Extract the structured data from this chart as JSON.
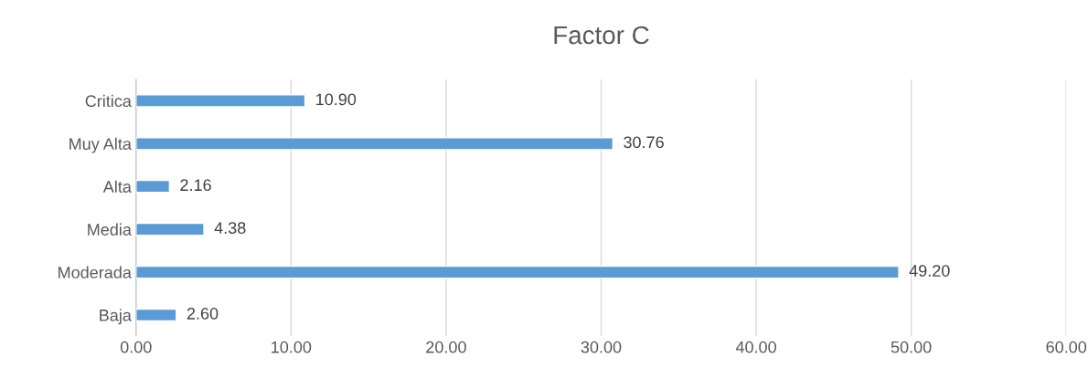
{
  "chart_data": {
    "type": "bar",
    "title": "Factor C",
    "orientation": "horizontal",
    "categories": [
      "Critica",
      "Muy Alta",
      "Alta",
      "Media",
      "Moderada",
      "Baja"
    ],
    "values": [
      10.9,
      30.76,
      2.16,
      4.38,
      49.2,
      2.6
    ],
    "value_labels": [
      "10.90",
      "30.76",
      "2.16",
      "4.38",
      "49.20",
      "2.60"
    ],
    "color": "#5b9bd5",
    "xlim": [
      0,
      60
    ],
    "xticks": [
      {
        "value": 0,
        "label": "0.00"
      },
      {
        "value": 10,
        "label": "10.00"
      },
      {
        "value": 20,
        "label": "20.00"
      },
      {
        "value": 30,
        "label": "30.00"
      },
      {
        "value": 40,
        "label": "40.00"
      },
      {
        "value": 50,
        "label": "50.00"
      },
      {
        "value": 60,
        "label": "60.00"
      }
    ],
    "grid": "x",
    "legend": false
  }
}
